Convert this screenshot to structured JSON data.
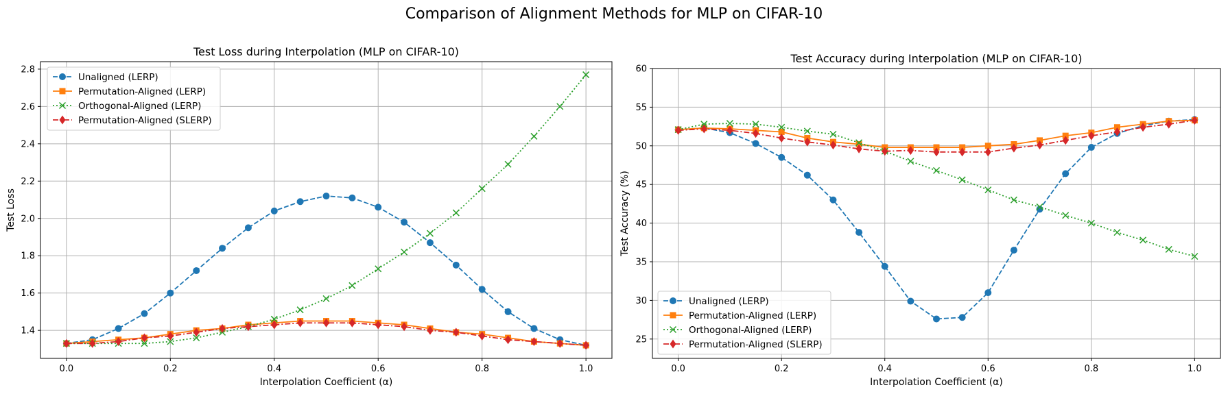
{
  "figure": {
    "suptitle": "Comparison of Alignment Methods for MLP on CIFAR-10"
  },
  "colors": {
    "unaligned": "#1f77b4",
    "permutation_lerp": "#ff7f0e",
    "orthogonal_lerp": "#2ca02c",
    "permutation_slerp": "#d62728"
  },
  "chart_data": [
    {
      "type": "line",
      "title": "Test Loss during Interpolation (MLP on CIFAR-10)",
      "xlabel": "Interpolation Coefficient (α)",
      "ylabel": "Test Loss",
      "xlim": [
        -0.05,
        1.05
      ],
      "ylim": [
        1.25,
        2.84
      ],
      "xticks": [
        0.0,
        0.2,
        0.4,
        0.6,
        0.8,
        1.0
      ],
      "xtick_labels": [
        "0.0",
        "0.2",
        "0.4",
        "0.6",
        "0.8",
        "1.0"
      ],
      "yticks": [
        1.4,
        1.6,
        1.8,
        2.0,
        2.2,
        2.4,
        2.6,
        2.8
      ],
      "ytick_labels": [
        "1.4",
        "1.6",
        "1.8",
        "2.0",
        "2.2",
        "2.4",
        "2.6",
        "2.8"
      ],
      "grid": true,
      "legend_position": "top-left",
      "x": [
        0.0,
        0.05,
        0.1,
        0.15,
        0.2,
        0.25,
        0.3,
        0.35,
        0.4,
        0.45,
        0.5,
        0.55,
        0.6,
        0.65,
        0.7,
        0.75,
        0.8,
        0.85,
        0.9,
        0.95,
        1.0
      ],
      "series": [
        {
          "name": "Unaligned (LERP)",
          "color_key": "unaligned",
          "marker": "circle",
          "dash": "dashed",
          "values": [
            1.33,
            1.35,
            1.41,
            1.49,
            1.6,
            1.72,
            1.84,
            1.95,
            2.04,
            2.09,
            2.12,
            2.11,
            2.06,
            1.98,
            1.87,
            1.75,
            1.62,
            1.5,
            1.41,
            1.35,
            1.32
          ]
        },
        {
          "name": "Permutation-Aligned (LERP)",
          "color_key": "permutation_lerp",
          "marker": "square",
          "dash": "solid",
          "values": [
            1.33,
            1.34,
            1.35,
            1.36,
            1.38,
            1.4,
            1.41,
            1.43,
            1.44,
            1.45,
            1.45,
            1.45,
            1.44,
            1.43,
            1.41,
            1.39,
            1.38,
            1.36,
            1.34,
            1.33,
            1.32
          ]
        },
        {
          "name": "Orthogonal-Aligned (LERP)",
          "color_key": "orthogonal_lerp",
          "marker": "x",
          "dash": "dotted",
          "values": [
            1.33,
            1.33,
            1.33,
            1.33,
            1.34,
            1.36,
            1.39,
            1.42,
            1.46,
            1.51,
            1.57,
            1.64,
            1.73,
            1.82,
            1.92,
            2.03,
            2.16,
            2.29,
            2.44,
            2.6,
            2.77
          ]
        },
        {
          "name": "Permutation-Aligned (SLERP)",
          "color_key": "permutation_slerp",
          "marker": "diamond",
          "dash": "dashdot",
          "values": [
            1.33,
            1.33,
            1.34,
            1.36,
            1.37,
            1.39,
            1.41,
            1.42,
            1.43,
            1.44,
            1.44,
            1.44,
            1.43,
            1.42,
            1.4,
            1.39,
            1.37,
            1.35,
            1.34,
            1.33,
            1.32
          ]
        }
      ]
    },
    {
      "type": "line",
      "title": "Test Accuracy during Interpolation (MLP on CIFAR-10)",
      "xlabel": "Interpolation Coefficient (α)",
      "ylabel": "Test Accuracy (%)",
      "xlim": [
        -0.05,
        1.05
      ],
      "ylim": [
        22.5,
        60
      ],
      "xticks": [
        0.0,
        0.2,
        0.4,
        0.6,
        0.8,
        1.0
      ],
      "xtick_labels": [
        "0.0",
        "0.2",
        "0.4",
        "0.6",
        "0.8",
        "1.0"
      ],
      "yticks": [
        25,
        30,
        35,
        40,
        45,
        50,
        55,
        60
      ],
      "ytick_labels": [
        "25",
        "30",
        "35",
        "40",
        "45",
        "50",
        "55",
        "60"
      ],
      "grid": true,
      "legend_position": "bottom-left",
      "x": [
        0.0,
        0.05,
        0.1,
        0.15,
        0.2,
        0.25,
        0.3,
        0.35,
        0.4,
        0.45,
        0.5,
        0.55,
        0.6,
        0.65,
        0.7,
        0.75,
        0.8,
        0.85,
        0.9,
        0.95,
        1.0
      ],
      "series": [
        {
          "name": "Unaligned (LERP)",
          "color_key": "unaligned",
          "marker": "circle",
          "dash": "dashed",
          "values": [
            52.1,
            52.3,
            51.7,
            50.3,
            48.5,
            46.2,
            43.0,
            38.8,
            34.4,
            29.9,
            27.6,
            27.8,
            31.0,
            36.5,
            41.8,
            46.4,
            49.8,
            51.6,
            52.6,
            53.2,
            53.4
          ]
        },
        {
          "name": "Permutation-Aligned (LERP)",
          "color_key": "permutation_lerp",
          "marker": "square",
          "dash": "solid",
          "values": [
            52.1,
            52.3,
            52.2,
            52.0,
            51.8,
            51.0,
            50.5,
            50.2,
            49.8,
            49.8,
            49.8,
            49.8,
            50.0,
            50.2,
            50.7,
            51.3,
            51.7,
            52.4,
            52.8,
            53.2,
            53.3
          ]
        },
        {
          "name": "Orthogonal-Aligned (LERP)",
          "color_key": "orthogonal_lerp",
          "marker": "x",
          "dash": "dotted",
          "values": [
            52.1,
            52.8,
            52.9,
            52.8,
            52.4,
            51.9,
            51.5,
            50.4,
            49.3,
            48.0,
            46.8,
            45.6,
            44.3,
            43.0,
            42.1,
            41.0,
            40.0,
            38.8,
            37.8,
            36.6,
            35.7
          ]
        },
        {
          "name": "Permutation-Aligned (SLERP)",
          "color_key": "permutation_slerp",
          "marker": "diamond",
          "dash": "dashdot",
          "values": [
            52.0,
            52.2,
            52.0,
            51.6,
            51.0,
            50.5,
            50.1,
            49.6,
            49.3,
            49.4,
            49.2,
            49.2,
            49.2,
            49.7,
            50.1,
            50.7,
            51.3,
            51.8,
            52.4,
            52.8,
            53.3
          ]
        }
      ]
    }
  ]
}
